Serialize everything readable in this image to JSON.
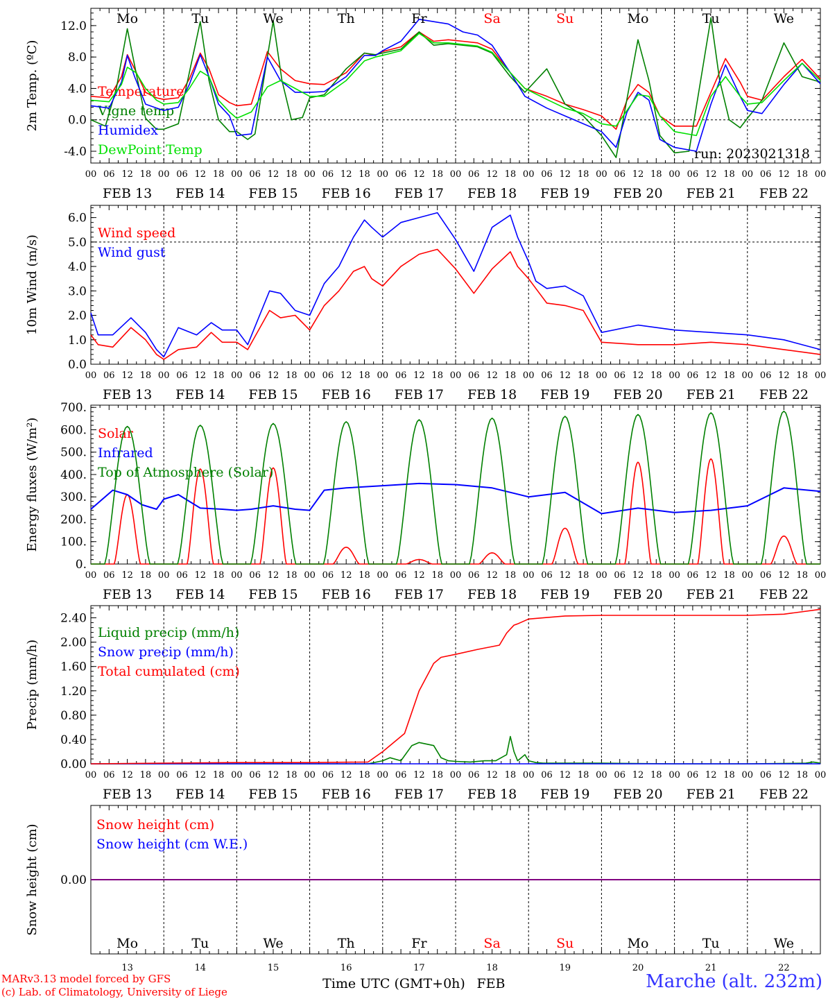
{
  "meta": {
    "run": "run: 2023021318",
    "credit_line1": "MARv3.13 model forced by GFS",
    "credit_line2": "(c) Lab. of Climatology, University of Liege",
    "station": "Marche (alt. 232m)",
    "xlabel": "Time UTC (GMT+0h)",
    "month": "FEB",
    "colors": {
      "temperature": "#ff0000",
      "vigne": "#008000",
      "humidex": "#0000ff",
      "dewpoint": "#00e000",
      "purple": "#800080"
    }
  },
  "days": {
    "weekday": [
      "Mo",
      "Tu",
      "We",
      "Th",
      "Fr",
      "Sa",
      "Su",
      "Mo",
      "Tu",
      "We"
    ],
    "weekend_flags": [
      false,
      false,
      false,
      false,
      false,
      true,
      true,
      false,
      false,
      false
    ],
    "date_labels": [
      "FEB 13",
      "FEB 14",
      "FEB 15",
      "FEB 16",
      "FEB 17",
      "FEB 18",
      "FEB 19",
      "FEB 20",
      "FEB 21",
      "FEB 22"
    ],
    "day_numbers": [
      "13",
      "14",
      "15",
      "16",
      "17",
      "18",
      "19",
      "20",
      "21",
      "22"
    ],
    "hour_ticks": [
      "00",
      "06",
      "12",
      "18"
    ]
  },
  "chart_data": [
    {
      "type": "line",
      "id": "temp",
      "ylabel": "2m Temp. (ºC)",
      "ylim": [
        -5.5,
        14.2
      ],
      "yticks": [
        -4.0,
        0.0,
        4.0,
        8.0,
        12.0
      ],
      "ytick_labels": [
        "-4.0",
        "0.0",
        "4.0",
        "8.0",
        "12.0"
      ],
      "x_unit": "days since FEB 13 00 UTC",
      "zero_line": true,
      "series": [
        {
          "name": "Temperature",
          "color": "#ff0000",
          "x": [
            0,
            0.25,
            0.42,
            0.5,
            0.6,
            0.75,
            0.9,
            1.0,
            1.2,
            1.35,
            1.5,
            1.62,
            1.75,
            1.9,
            2.0,
            2.2,
            2.42,
            2.6,
            2.8,
            3.0,
            3.2,
            3.5,
            3.75,
            3.9,
            4.0,
            4.25,
            4.5,
            4.7,
            4.9,
            5.1,
            5.3,
            5.5,
            5.75,
            5.95,
            6.25,
            6.5,
            6.75,
            7.0,
            7.2,
            7.35,
            7.5,
            7.65,
            7.8,
            8.0,
            8.3,
            8.5,
            8.7,
            8.9,
            9.0,
            9.2,
            9.5,
            9.75,
            10.0
          ],
          "y": [
            3.0,
            2.8,
            5.5,
            8.3,
            6.5,
            3.5,
            2.8,
            2.6,
            2.8,
            5.2,
            8.5,
            6.5,
            3.2,
            2.2,
            1.8,
            2.0,
            8.7,
            6.5,
            5.0,
            4.6,
            4.5,
            6.0,
            8.5,
            8.2,
            8.7,
            9.3,
            11.2,
            10.0,
            10.2,
            10.0,
            9.8,
            9.0,
            6.0,
            4.0,
            3.0,
            2.0,
            1.3,
            0.5,
            -1.2,
            2.5,
            4.5,
            3.5,
            0.5,
            -0.8,
            -0.8,
            3.5,
            7.8,
            4.8,
            3.0,
            2.5,
            5.5,
            7.7,
            5.2
          ]
        },
        {
          "name": "Vigne temp",
          "color": "#008000",
          "x": [
            0,
            0.2,
            0.35,
            0.5,
            0.62,
            0.75,
            0.9,
            1.0,
            1.2,
            1.35,
            1.5,
            1.62,
            1.75,
            1.9,
            2.0,
            2.15,
            2.25,
            2.5,
            2.62,
            2.75,
            2.9,
            3.0,
            3.2,
            3.5,
            3.75,
            3.9,
            4.0,
            4.25,
            4.5,
            4.7,
            4.9,
            5.1,
            5.3,
            5.5,
            5.75,
            5.95,
            6.25,
            6.5,
            6.75,
            7.0,
            7.2,
            7.5,
            7.65,
            7.8,
            8.0,
            8.2,
            8.5,
            8.62,
            8.75,
            8.9,
            9.0,
            9.2,
            9.5,
            9.75,
            10.0
          ],
          "y": [
            0.0,
            -0.8,
            4.0,
            11.6,
            6.0,
            0.2,
            -1.2,
            -1.2,
            -0.5,
            6.0,
            12.5,
            5.0,
            0.0,
            -1.5,
            -1.5,
            -2.5,
            -1.8,
            12.6,
            5.0,
            0.0,
            0.3,
            2.8,
            3.2,
            6.5,
            8.5,
            8.3,
            8.5,
            9.0,
            11.2,
            9.5,
            9.7,
            9.5,
            9.3,
            8.5,
            5.5,
            3.5,
            6.5,
            2.0,
            0.5,
            -2.0,
            -4.8,
            10.2,
            5.0,
            -2.0,
            -4.2,
            -4.0,
            13.0,
            5.0,
            0.0,
            -1.0,
            0.2,
            2.5,
            9.8,
            5.5,
            4.8
          ]
        },
        {
          "name": "Humidex",
          "color": "#0000ff",
          "x": [
            0,
            0.25,
            0.42,
            0.5,
            0.6,
            0.75,
            0.9,
            1.0,
            1.2,
            1.35,
            1.5,
            1.62,
            1.75,
            1.9,
            2.0,
            2.2,
            2.42,
            2.6,
            2.8,
            3.0,
            3.2,
            3.5,
            3.75,
            3.9,
            4.0,
            4.25,
            4.5,
            4.7,
            4.9,
            5.1,
            5.3,
            5.5,
            5.75,
            5.95,
            6.25,
            6.5,
            6.75,
            7.0,
            7.2,
            7.35,
            7.5,
            7.65,
            7.8,
            8.0,
            8.3,
            8.5,
            8.7,
            8.9,
            9.0,
            9.2,
            9.5,
            9.75,
            10.0
          ],
          "y": [
            1.8,
            1.5,
            4.8,
            8.2,
            5.5,
            2.0,
            1.5,
            1.2,
            1.6,
            4.5,
            8.3,
            5.5,
            2.0,
            0.5,
            -2.0,
            -1.8,
            8.0,
            5.0,
            3.5,
            3.5,
            3.6,
            5.5,
            8.2,
            8.2,
            8.8,
            10.0,
            12.8,
            12.5,
            12.2,
            11.2,
            10.8,
            9.5,
            6.0,
            3.0,
            1.5,
            0.5,
            -0.5,
            -1.5,
            -3.5,
            1.0,
            3.5,
            2.5,
            -2.5,
            -3.5,
            -4.0,
            2.0,
            7.0,
            3.0,
            1.2,
            0.8,
            4.5,
            7.2,
            4.6
          ]
        },
        {
          "name": "DewPoint Temp",
          "color": "#00e000",
          "x": [
            0,
            0.25,
            0.42,
            0.5,
            0.62,
            0.75,
            0.9,
            1.0,
            1.2,
            1.35,
            1.5,
            1.62,
            1.75,
            1.9,
            2.0,
            2.2,
            2.42,
            2.6,
            2.8,
            3.0,
            3.2,
            3.5,
            3.75,
            3.9,
            4.0,
            4.25,
            4.5,
            4.7,
            4.9,
            5.1,
            5.3,
            5.5,
            5.75,
            5.95,
            6.25,
            6.5,
            6.75,
            7.0,
            7.2,
            7.5,
            7.65,
            7.8,
            8.0,
            8.3,
            8.5,
            8.7,
            8.9,
            9.0,
            9.2,
            9.5,
            9.75,
            10.0
          ],
          "y": [
            2.5,
            2.3,
            4.5,
            6.7,
            6.0,
            4.0,
            2.5,
            2.0,
            2.2,
            4.0,
            6.2,
            5.5,
            2.5,
            1.0,
            0.2,
            1.0,
            4.2,
            5.0,
            4.0,
            3.0,
            3.0,
            5.0,
            7.5,
            8.0,
            8.2,
            8.8,
            11.0,
            9.8,
            9.8,
            9.6,
            9.4,
            8.6,
            6.0,
            4.0,
            2.6,
            1.5,
            0.8,
            -0.5,
            -0.8,
            3.2,
            3.0,
            0.5,
            -1.5,
            -2.0,
            3.0,
            5.5,
            3.0,
            2.0,
            2.2,
            5.0,
            7.2,
            5.0
          ]
        }
      ]
    },
    {
      "type": "line",
      "id": "wind",
      "ylabel": "10m Wind (m/s)",
      "ylim": [
        0,
        6.5
      ],
      "yticks": [
        0.0,
        1.0,
        2.0,
        3.0,
        4.0,
        5.0,
        6.0
      ],
      "ytick_labels": [
        "0.0",
        "1.0",
        "2.0",
        "3.0",
        "4.0",
        "5.0",
        "6.0"
      ],
      "ref_line": 5.0,
      "series": [
        {
          "name": "Wind speed",
          "color": "#ff0000",
          "x": [
            0,
            0.1,
            0.3,
            0.55,
            0.75,
            0.9,
            1.0,
            1.2,
            1.45,
            1.65,
            1.8,
            2.0,
            2.15,
            2.45,
            2.6,
            2.8,
            3.0,
            3.2,
            3.4,
            3.6,
            3.75,
            3.85,
            4.0,
            4.25,
            4.5,
            4.75,
            5.0,
            5.25,
            5.5,
            5.75,
            5.85,
            6.0,
            6.1,
            6.25,
            6.5,
            6.75,
            7.0,
            7.5,
            8.0,
            8.5,
            9.0,
            9.5,
            10.0
          ],
          "y": [
            1.2,
            0.8,
            0.7,
            1.5,
            1.0,
            0.4,
            0.2,
            0.6,
            0.7,
            1.3,
            0.9,
            0.9,
            0.6,
            2.2,
            1.9,
            2.0,
            1.4,
            2.4,
            3.0,
            3.8,
            4.0,
            3.5,
            3.2,
            4.0,
            4.5,
            4.7,
            3.9,
            2.9,
            3.9,
            4.6,
            4.0,
            3.5,
            3.1,
            2.5,
            2.4,
            2.2,
            0.9,
            0.8,
            0.8,
            0.9,
            0.8,
            0.6,
            0.4
          ]
        },
        {
          "name": "Wind gust",
          "color": "#0000ff",
          "x": [
            0,
            0.1,
            0.3,
            0.55,
            0.75,
            0.9,
            1.0,
            1.2,
            1.45,
            1.65,
            1.8,
            2.0,
            2.15,
            2.45,
            2.6,
            2.8,
            3.0,
            3.2,
            3.4,
            3.6,
            3.75,
            3.85,
            4.0,
            4.25,
            4.5,
            4.75,
            5.0,
            5.25,
            5.5,
            5.75,
            5.85,
            6.0,
            6.1,
            6.25,
            6.5,
            6.75,
            7.0,
            7.5,
            8.0,
            8.5,
            9.0,
            9.5,
            10.0
          ],
          "y": [
            2.1,
            1.2,
            1.2,
            1.9,
            1.3,
            0.6,
            0.3,
            1.5,
            1.2,
            1.7,
            1.4,
            1.4,
            0.8,
            3.0,
            2.9,
            2.2,
            2.0,
            3.3,
            4.0,
            5.2,
            5.9,
            5.6,
            5.2,
            5.8,
            6.0,
            6.2,
            5.1,
            3.8,
            5.6,
            6.1,
            5.2,
            4.2,
            3.4,
            3.1,
            3.2,
            2.8,
            1.3,
            1.6,
            1.4,
            1.3,
            1.2,
            1.0,
            0.6
          ]
        }
      ]
    },
    {
      "type": "line",
      "id": "energy",
      "ylabel": "Energy fluxes (W/m²)",
      "ylim": [
        0,
        710
      ],
      "yticks": [
        0,
        100,
        200,
        300,
        400,
        500,
        600,
        700
      ],
      "ytick_labels": [
        "0.",
        "100.",
        "200.",
        "300.",
        "400.",
        "500.",
        "600.",
        "700."
      ],
      "series": [
        {
          "name": "Solar",
          "color": "#ff0000",
          "noon": 0.5,
          "halfwidth": 0.18,
          "daily_peak": [
            310,
            425,
            430,
            75,
            20,
            50,
            160,
            455,
            470,
            125
          ]
        },
        {
          "name": "Infrared",
          "color": "#0000ff",
          "x": [
            0,
            0.3,
            0.5,
            0.7,
            0.9,
            1.0,
            1.2,
            1.5,
            1.8,
            2.0,
            2.2,
            2.5,
            2.8,
            3.0,
            3.2,
            3.5,
            4.0,
            4.5,
            5.0,
            5.5,
            6.0,
            6.5,
            7.0,
            7.5,
            8.0,
            8.5,
            9.0,
            9.5,
            10.0
          ],
          "y": [
            245,
            330,
            310,
            265,
            245,
            290,
            310,
            250,
            245,
            240,
            245,
            260,
            245,
            240,
            330,
            340,
            350,
            360,
            355,
            340,
            300,
            320,
            225,
            250,
            230,
            240,
            260,
            340,
            325
          ]
        },
        {
          "name": "Top of Atmosphere (Solar)",
          "color": "#008000",
          "noon": 0.5,
          "halfwidth": 0.31,
          "daily_peak": [
            615,
            620,
            628,
            636,
            645,
            652,
            660,
            668,
            676,
            683
          ]
        }
      ]
    },
    {
      "type": "line",
      "id": "precip",
      "ylabel": "Precip (mm/h)",
      "ylim": [
        0,
        2.6
      ],
      "yticks": [
        0.0,
        0.4,
        0.8,
        1.2,
        1.6,
        2.0,
        2.4
      ],
      "ytick_labels": [
        "0.00",
        "0.40",
        "0.80",
        "1.20",
        "1.60",
        "2.00",
        "2.40"
      ],
      "series": [
        {
          "name": "Liquid precip (mm/h)",
          "color": "#008000",
          "x": [
            0,
            3.8,
            4.0,
            4.1,
            4.25,
            4.4,
            4.5,
            4.7,
            4.8,
            4.9,
            5.0,
            5.2,
            5.4,
            5.55,
            5.7,
            5.75,
            5.8,
            5.85,
            5.9,
            5.95,
            6.0,
            6.1,
            6.2,
            7.0,
            8.0,
            9.0,
            9.8,
            9.9,
            10.0
          ],
          "y": [
            0,
            0,
            0.05,
            0.1,
            0.05,
            0.3,
            0.35,
            0.3,
            0.1,
            0.05,
            0.04,
            0.03,
            0.05,
            0.05,
            0.15,
            0.45,
            0.2,
            0.05,
            0.1,
            0.15,
            0.05,
            0.02,
            0.01,
            0.01,
            0.0,
            0.0,
            0.01,
            0.03,
            0.01
          ]
        },
        {
          "name": "Snow precip (mm/h)",
          "color": "#0000ff",
          "x": [
            0,
            10.0
          ],
          "y": [
            0,
            0
          ]
        },
        {
          "name": "Total cumulated (cm)",
          "color": "#ff0000",
          "x": [
            0,
            1.0,
            2.0,
            3.0,
            3.8,
            4.0,
            4.3,
            4.5,
            4.7,
            4.8,
            5.0,
            5.3,
            5.6,
            5.7,
            5.8,
            5.85,
            6.0,
            6.5,
            7.0,
            8.0,
            9.0,
            9.5,
            10.0
          ],
          "y": [
            0,
            0.01,
            0.02,
            0.02,
            0.03,
            0.2,
            0.5,
            1.2,
            1.65,
            1.75,
            1.8,
            1.88,
            1.95,
            2.15,
            2.28,
            2.3,
            2.38,
            2.43,
            2.44,
            2.44,
            2.44,
            2.46,
            2.54
          ]
        }
      ]
    },
    {
      "type": "line",
      "id": "snow",
      "ylabel": "Snow height (cm)",
      "ylim": [
        -1,
        1
      ],
      "yticks": [
        0.0
      ],
      "ytick_labels": [
        "0.00"
      ],
      "series": [
        {
          "name": "Snow height (cm)",
          "color": "#ff0000",
          "x": [
            0,
            10.0
          ],
          "y": [
            0,
            0
          ]
        },
        {
          "name": "Snow height (cm W.E.)",
          "color": "#0000ff",
          "x": [
            0,
            10.0
          ],
          "y": [
            0,
            0
          ]
        }
      ]
    }
  ]
}
